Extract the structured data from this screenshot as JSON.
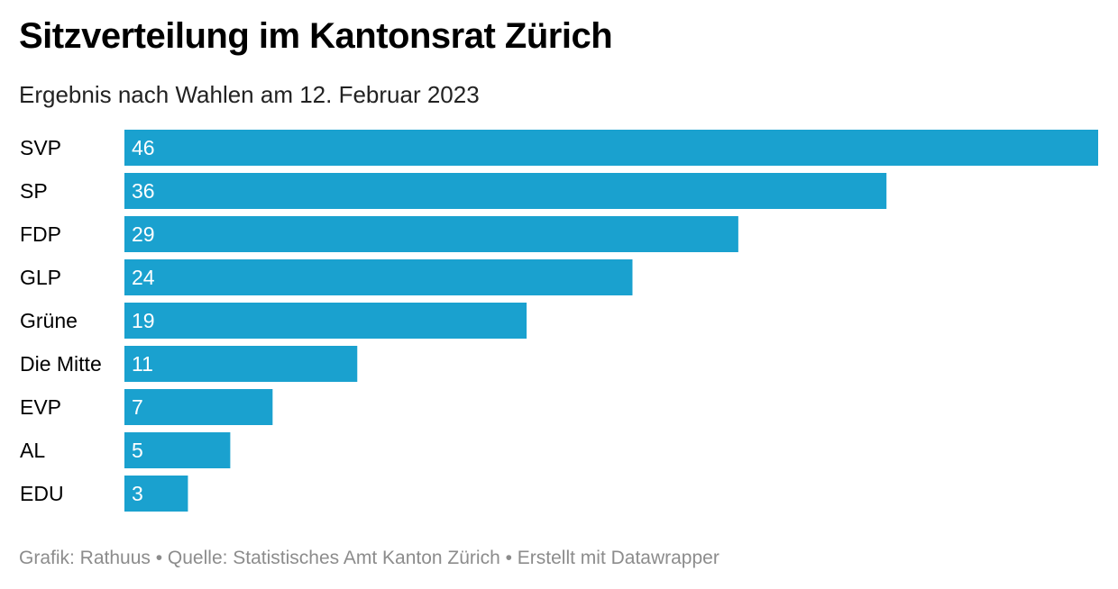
{
  "header": {
    "title": "Sitzverteilung im Kantonsrat Zürich",
    "subtitle": "Ergebnis nach Wahlen am 12. Februar 2023"
  },
  "footer": {
    "source_line": "Grafik: Rathuus • Quelle: Statistisches Amt Kanton Zürich • Erstellt mit Datawrapper"
  },
  "chart_data": {
    "type": "bar",
    "orientation": "horizontal",
    "title": "Sitzverteilung im Kantonsrat Zürich",
    "subtitle": "Ergebnis nach Wahlen am 12. Februar 2023",
    "categories": [
      "SVP",
      "SP",
      "FDP",
      "GLP",
      "Grüne",
      "Die Mitte",
      "EVP",
      "AL",
      "EDU"
    ],
    "values": [
      46,
      36,
      29,
      24,
      19,
      11,
      7,
      5,
      3
    ],
    "xlim": [
      0,
      46
    ],
    "grid": false,
    "legend": "none",
    "bar_color": "#1aa1cf",
    "value_labels": "inside-left"
  }
}
